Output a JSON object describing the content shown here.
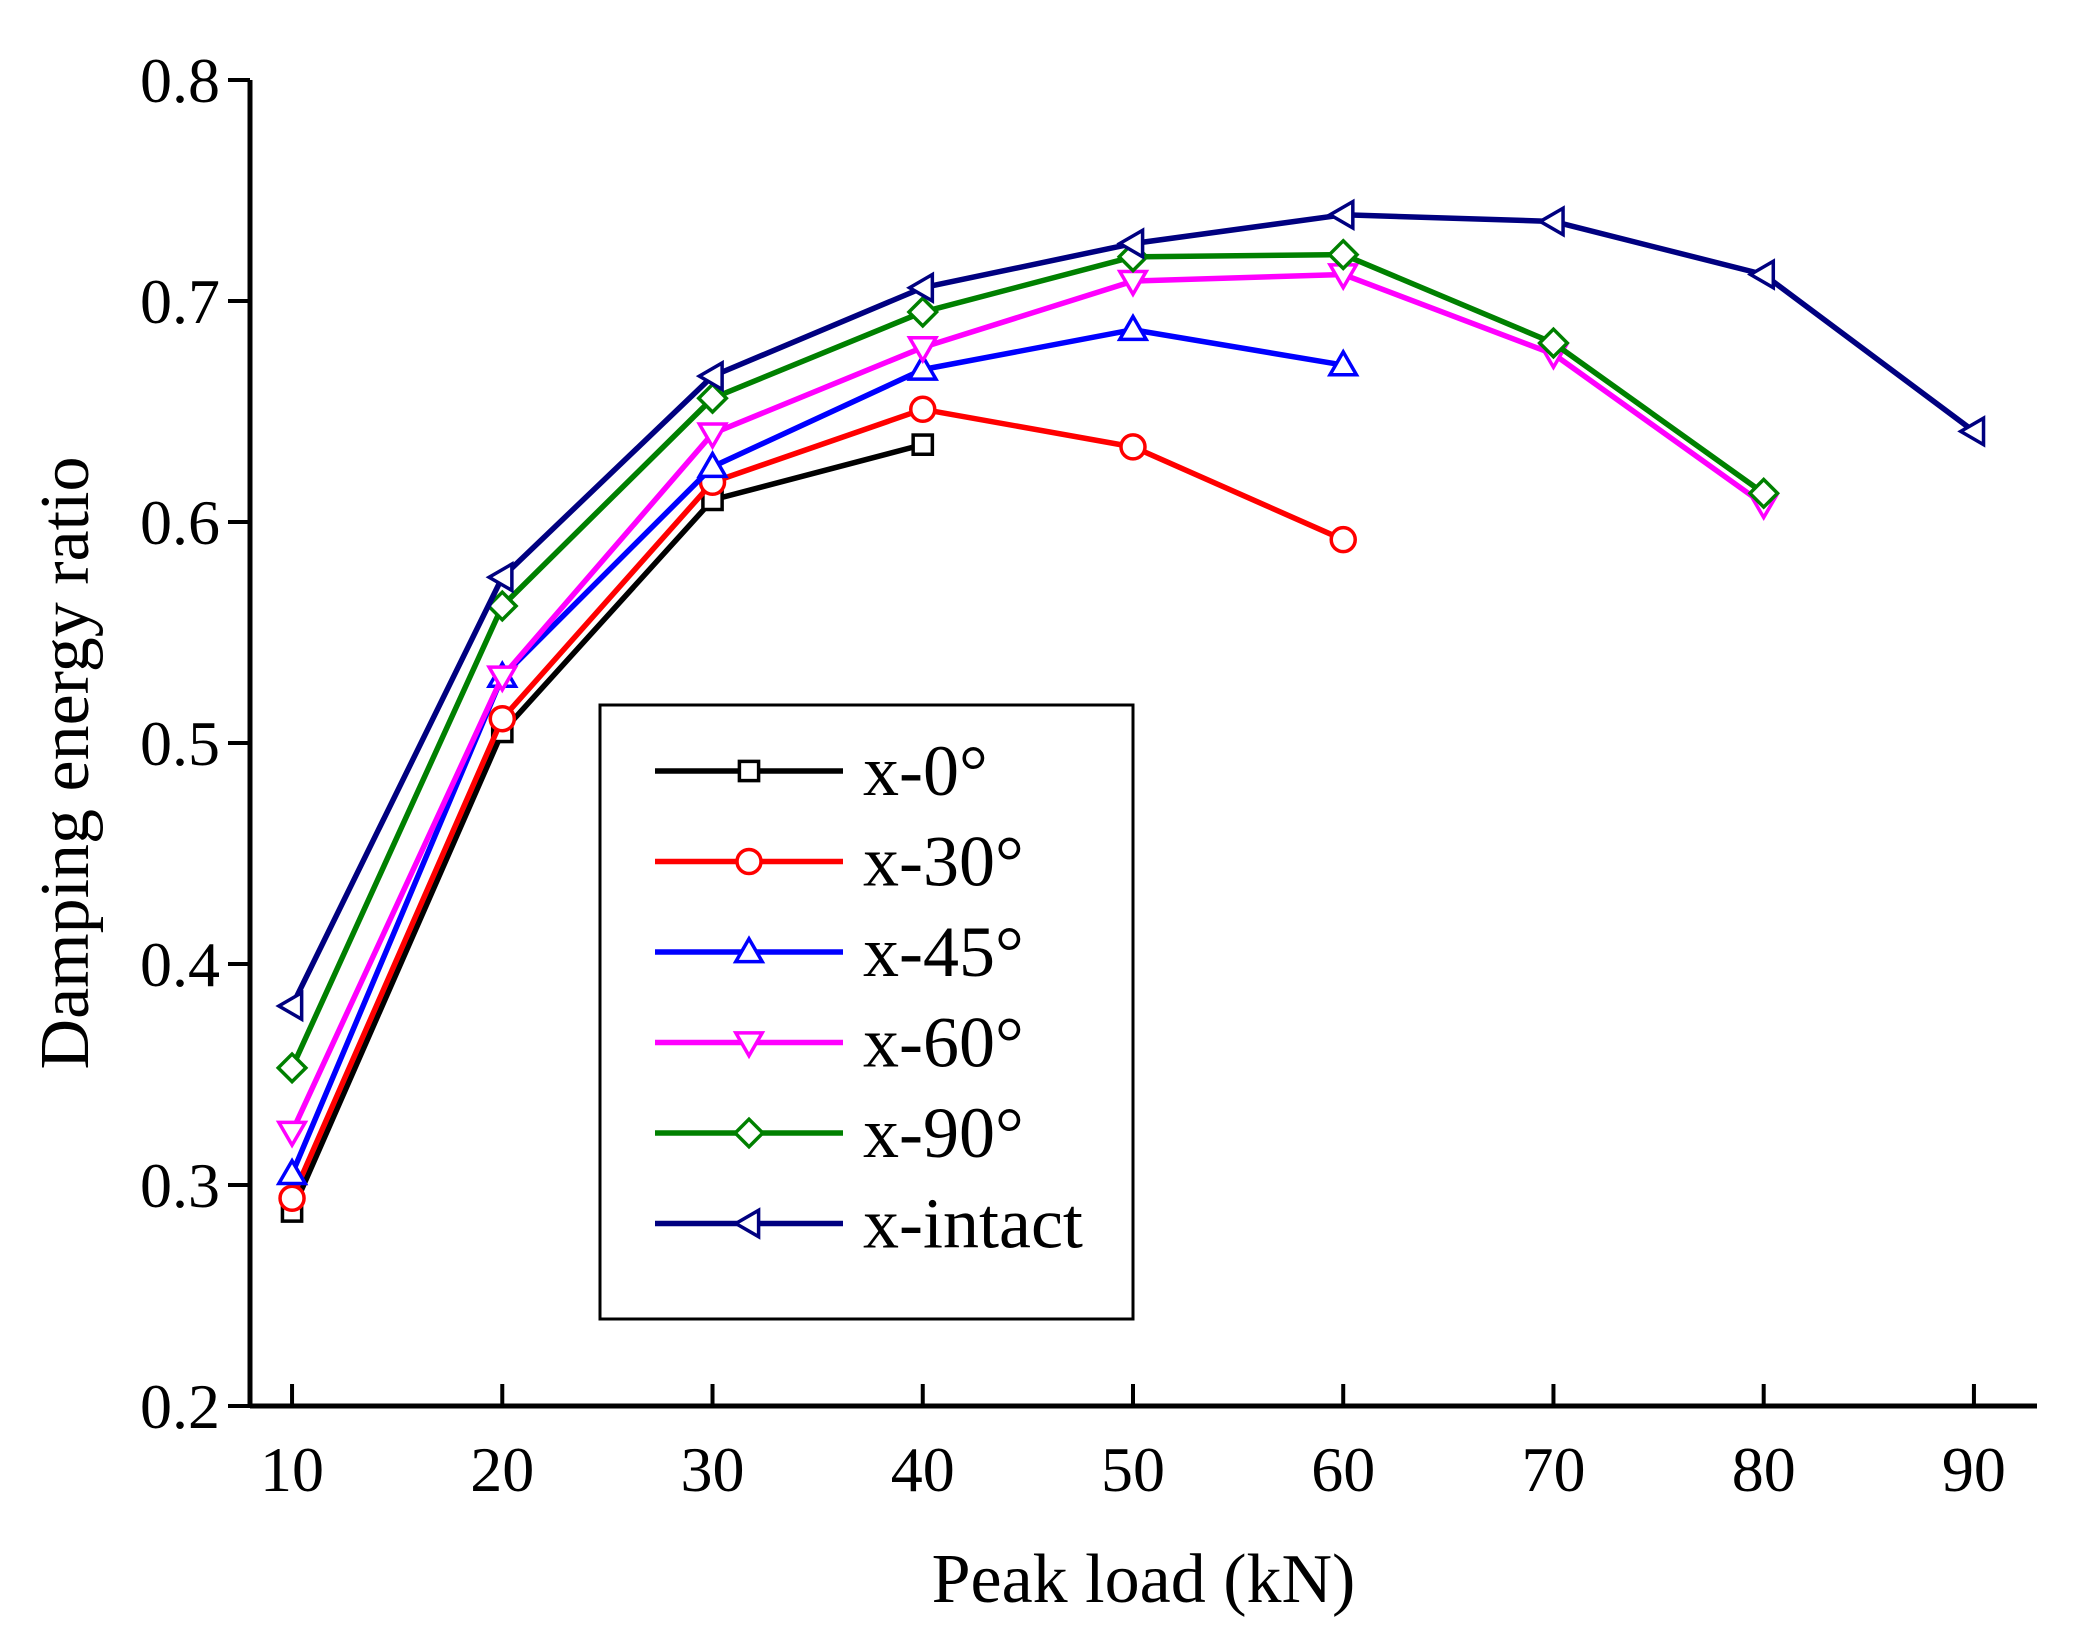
{
  "chart_data": {
    "type": "line",
    "title": "",
    "xlabel": "Peak load (kN)",
    "ylabel": "Damping energy ratio",
    "xlim": [
      8,
      93
    ],
    "ylim": [
      0.2,
      0.8
    ],
    "xticks": [
      10,
      20,
      30,
      40,
      50,
      60,
      70,
      80,
      90
    ],
    "yticks": [
      0.2,
      0.3,
      0.4,
      0.5,
      0.6,
      0.7,
      0.8
    ],
    "xtick_labels": [
      "10",
      "20",
      "30",
      "40",
      "50",
      "60",
      "70",
      "80",
      "90"
    ],
    "ytick_labels": [
      "0.2",
      "0.3",
      "0.4",
      "0.5",
      "0.6",
      "0.7",
      "0.8"
    ],
    "legend_position": "lower-center",
    "series": [
      {
        "name": "x-0°",
        "color": "#000000",
        "marker": "square",
        "x": [
          10,
          20,
          30,
          40
        ],
        "y": [
          0.288,
          0.505,
          0.61,
          0.635
        ]
      },
      {
        "name": "x-30°",
        "color": "#ff0000",
        "marker": "circle",
        "x": [
          10,
          20,
          30,
          40,
          50,
          60
        ],
        "y": [
          0.294,
          0.511,
          0.618,
          0.651,
          0.634,
          0.592
        ]
      },
      {
        "name": "x-45°",
        "color": "#0000ff",
        "marker": "triangle-up",
        "x": [
          10,
          20,
          30,
          40,
          50,
          60
        ],
        "y": [
          0.305,
          0.53,
          0.625,
          0.669,
          0.687,
          0.671
        ]
      },
      {
        "name": "x-60°",
        "color": "#ff00ff",
        "marker": "triangle-down",
        "x": [
          10,
          20,
          30,
          40,
          50,
          60,
          70,
          80
        ],
        "y": [
          0.324,
          0.53,
          0.64,
          0.679,
          0.709,
          0.712,
          0.676,
          0.608
        ]
      },
      {
        "name": "x-90°",
        "color": "#008000",
        "marker": "diamond",
        "x": [
          10,
          20,
          30,
          40,
          50,
          60,
          70,
          80
        ],
        "y": [
          0.353,
          0.562,
          0.656,
          0.695,
          0.72,
          0.721,
          0.681,
          0.613
        ]
      },
      {
        "name": "x-intact",
        "color": "#000080",
        "marker": "triangle-left",
        "x": [
          10,
          20,
          30,
          40,
          50,
          60,
          70,
          80,
          90
        ],
        "y": [
          0.381,
          0.575,
          0.666,
          0.706,
          0.726,
          0.739,
          0.736,
          0.712,
          0.641
        ]
      }
    ]
  }
}
